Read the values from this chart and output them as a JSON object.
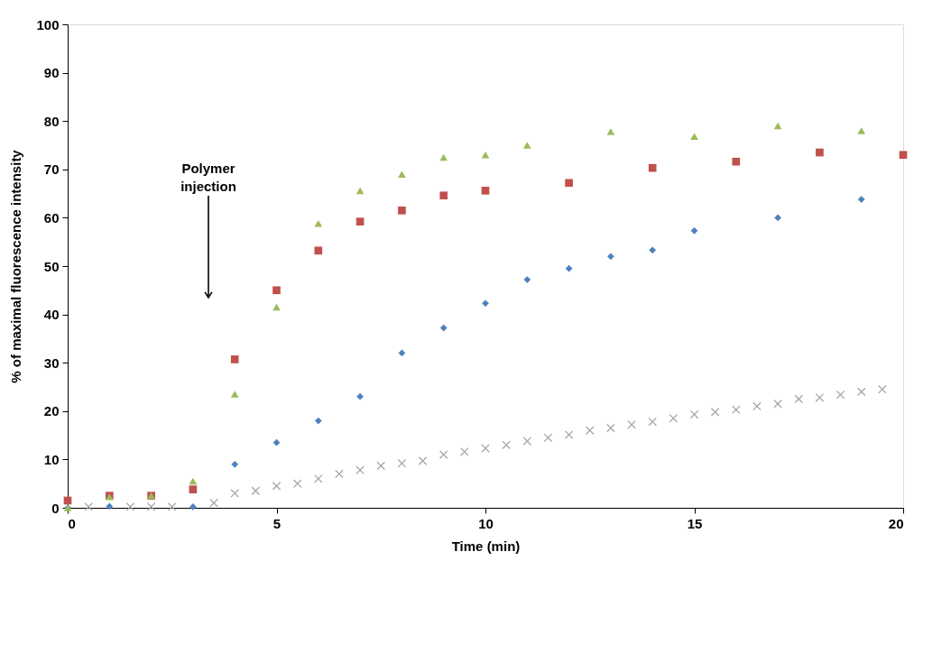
{
  "chart_data": {
    "type": "scatter",
    "xlabel": "Time (min)",
    "ylabel": "% of maximal fluorescence intensity",
    "xlim": [
      0,
      20
    ],
    "xticks": [
      0,
      5,
      10,
      15,
      20
    ],
    "ylim": [
      0,
      100
    ],
    "yticks": [
      0,
      10,
      20,
      30,
      40,
      50,
      60,
      70,
      80,
      90,
      100
    ],
    "grid": false,
    "annotations": [
      "Polymer\ninjection"
    ],
    "series": [
      {
        "color": "#a6a6a6",
        "marker": "cross",
        "x": [
          0.5,
          1.5,
          2,
          2.5,
          3.5,
          4,
          4.5,
          5,
          5.5,
          6,
          6.5,
          7,
          7.5,
          8,
          8.5,
          9,
          9.5,
          10,
          10.5,
          11,
          11.5,
          12,
          12.5,
          13,
          13.5,
          14,
          14.5,
          15,
          15.5,
          16,
          16.5,
          17,
          17.5,
          18,
          18.5,
          19,
          19.5
        ],
        "values": [
          0.2,
          0.2,
          0.2,
          0.2,
          1,
          3,
          3.5,
          4.5,
          5,
          6,
          7,
          7.8,
          8.7,
          9.2,
          9.7,
          11,
          11.6,
          12.3,
          13,
          13.8,
          14.5,
          15.1,
          16,
          16.5,
          17.2,
          17.8,
          18.5,
          19.3,
          19.8,
          20.3,
          21,
          21.5,
          22.5,
          22.8,
          23.4,
          24,
          24.5
        ]
      },
      {
        "color": "#4f81bd",
        "marker": "diamond",
        "x": [
          0,
          1,
          3,
          4,
          5,
          6,
          7,
          8,
          9,
          10,
          11,
          12,
          13,
          14,
          15,
          17,
          19
        ],
        "values": [
          0,
          0.3,
          0.2,
          9,
          13.5,
          18,
          23,
          32,
          37.2,
          42.3,
          47.2,
          49.5,
          52,
          53.3,
          57.3,
          60,
          63.8
        ]
      },
      {
        "color": "#c0504d",
        "marker": "square",
        "x": [
          0,
          1,
          2,
          3,
          4,
          5,
          6,
          7,
          8,
          9,
          10,
          12,
          14,
          16,
          18,
          20
        ],
        "values": [
          1.5,
          2.5,
          2.5,
          3.8,
          30.7,
          45,
          53.2,
          59.2,
          61.5,
          64.6,
          65.6,
          67.2,
          70.3,
          71.6,
          73.5,
          73
        ]
      },
      {
        "color": "#9bbb59",
        "marker": "triangle",
        "x": [
          0,
          1,
          2,
          3,
          4,
          5,
          6,
          7,
          8,
          9,
          10,
          11,
          13,
          15,
          17,
          19
        ],
        "values": [
          0,
          2.3,
          2.5,
          5.5,
          23.5,
          41.5,
          58.8,
          65.6,
          69,
          72.5,
          73,
          75,
          77.8,
          76.8,
          79,
          78
        ]
      }
    ]
  }
}
